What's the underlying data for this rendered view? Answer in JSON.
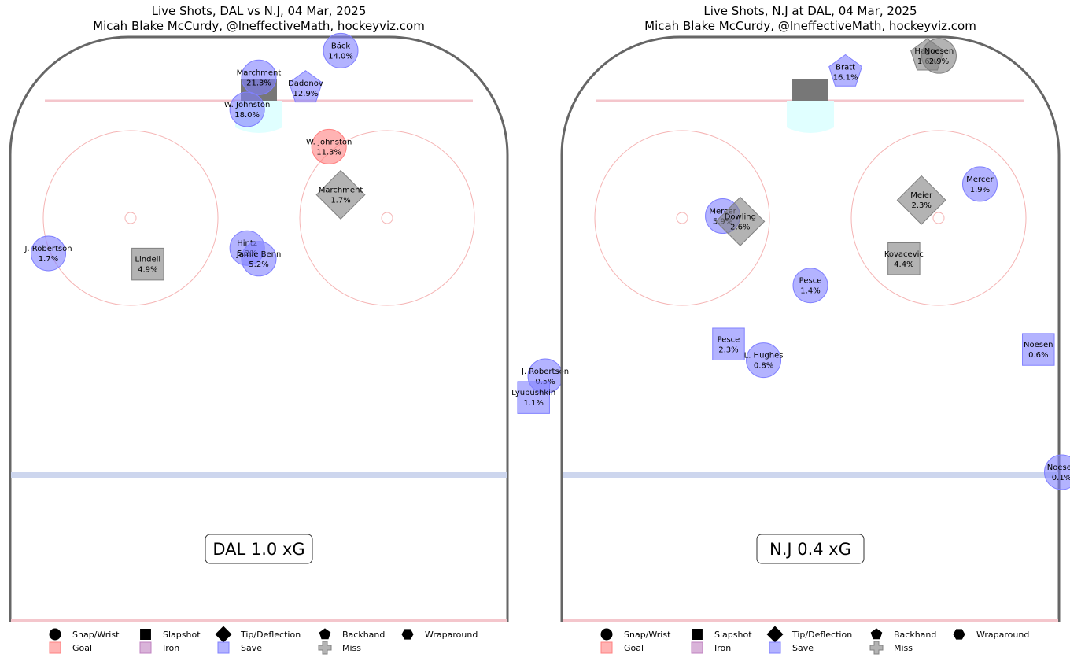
{
  "chart_data": [
    {
      "type": "scatter",
      "title": "Live Shots, DAL vs N.J, 04 Mar, 2025",
      "subtitle": "Micah Blake McCurdy, @IneffectiveMath, hockeyviz.com",
      "xg_label": "DAL 1.0 xG",
      "shots": [
        {
          "player": "Bäck",
          "pct": "14.0%",
          "x": 14,
          "y": 79,
          "shape": "snap",
          "result": "save"
        },
        {
          "player": "Marchment",
          "pct": "21.3%",
          "x": 0,
          "y": 74,
          "shape": "snap",
          "result": "save"
        },
        {
          "player": "Dadonov",
          "pct": "12.9%",
          "x": 8,
          "y": 72,
          "shape": "backhand",
          "result": "save"
        },
        {
          "player": "W. Johnston",
          "pct": "18.0%",
          "x": -2,
          "y": 68,
          "shape": "snap",
          "result": "save"
        },
        {
          "player": "W. Johnston",
          "pct": "11.3%",
          "x": 12,
          "y": 61,
          "shape": "snap",
          "result": "goal"
        },
        {
          "player": "Marchment",
          "pct": "1.7%",
          "x": 14,
          "y": 52,
          "shape": "tip",
          "result": "miss"
        },
        {
          "player": "J. Robertson",
          "pct": "1.7%",
          "x": -36,
          "y": 41,
          "shape": "snap",
          "result": "save"
        },
        {
          "player": "Lindell",
          "pct": "4.9%",
          "x": -19,
          "y": 39,
          "shape": "slapshot",
          "result": "miss"
        },
        {
          "player": "Hintz",
          "pct": "5.2%",
          "x": -2,
          "y": 42,
          "shape": "snap",
          "result": "save"
        },
        {
          "player": "Jamie Benn",
          "pct": "5.2%",
          "x": 0,
          "y": 40,
          "shape": "snap",
          "result": "save"
        },
        {
          "player": "J. Robertson",
          "pct": "0.5%",
          "x": 49,
          "y": 18,
          "shape": "snap",
          "result": "save"
        },
        {
          "player": "Lyubushkin",
          "pct": "1.1%",
          "x": 47,
          "y": 14,
          "shape": "slapshot",
          "result": "save"
        }
      ]
    },
    {
      "type": "scatter",
      "title": "Live Shots, N.J at DAL, 04 Mar, 2025",
      "subtitle": "Micah Blake McCurdy, @IneffectiveMath, hockeyviz.com",
      "xg_label": "N.J 0.4 xG",
      "shots": [
        {
          "player": "Bratt",
          "pct": "16.1%",
          "x": 6,
          "y": 75,
          "shape": "backhand",
          "result": "save"
        },
        {
          "player": "Hague",
          "pct": "1.6%",
          "x": 20,
          "y": 78,
          "shape": "backhand",
          "result": "miss"
        },
        {
          "player": "Noesen",
          "pct": "2.9%",
          "x": 22,
          "y": 78,
          "shape": "snap",
          "result": "miss"
        },
        {
          "player": "Mercer",
          "pct": "1.9%",
          "x": 29,
          "y": 54,
          "shape": "snap",
          "result": "save"
        },
        {
          "player": "Meier",
          "pct": "2.3%",
          "x": 19,
          "y": 51,
          "shape": "tip",
          "result": "miss"
        },
        {
          "player": "Mercer",
          "pct": "5.9%",
          "x": -15,
          "y": 48,
          "shape": "snap",
          "result": "save"
        },
        {
          "player": "Dowling",
          "pct": "2.6%",
          "x": -12,
          "y": 47,
          "shape": "tip",
          "result": "miss"
        },
        {
          "player": "Kovacevic",
          "pct": "4.4%",
          "x": 16,
          "y": 40,
          "shape": "slapshot",
          "result": "miss"
        },
        {
          "player": "Pesce",
          "pct": "1.4%",
          "x": 0,
          "y": 35,
          "shape": "snap",
          "result": "save"
        },
        {
          "player": "Pesce",
          "pct": "2.3%",
          "x": -14,
          "y": 24,
          "shape": "slapshot",
          "result": "save"
        },
        {
          "player": "L. Hughes",
          "pct": "0.8%",
          "x": -8,
          "y": 21,
          "shape": "snap",
          "result": "save"
        },
        {
          "player": "Noesen",
          "pct": "0.6%",
          "x": 39,
          "y": 23,
          "shape": "slapshot",
          "result": "save"
        },
        {
          "player": "Noesen",
          "pct": "0.1%",
          "x": 43,
          "y": 0,
          "shape": "snap",
          "result": "save"
        }
      ]
    }
  ],
  "legend": {
    "shapes": [
      {
        "key": "snap",
        "label": "Snap/Wrist"
      },
      {
        "key": "slapshot",
        "label": "Slapshot"
      },
      {
        "key": "tip",
        "label": "Tip/Deflection"
      },
      {
        "key": "backhand",
        "label": "Backhand"
      },
      {
        "key": "wraparound",
        "label": "Wraparound"
      }
    ],
    "results": [
      {
        "key": "goal",
        "label": "Goal",
        "color": "#ff8080"
      },
      {
        "key": "iron",
        "label": "Iron",
        "color": "#c080c0"
      },
      {
        "key": "save",
        "label": "Save",
        "color": "#8080ff"
      },
      {
        "key": "miss",
        "label": "Miss",
        "color": "#808080"
      }
    ]
  },
  "colors": {
    "goal": "#ff8080",
    "save": "#8080ff",
    "miss": "#808080",
    "iron": "#c080c0",
    "boards": "#666666",
    "red_line": "#f4c6cc",
    "blue_line": "#cdd6ee",
    "faceoff": "#f5b4b4",
    "crease": "#e0ffff",
    "net": "#777777"
  }
}
